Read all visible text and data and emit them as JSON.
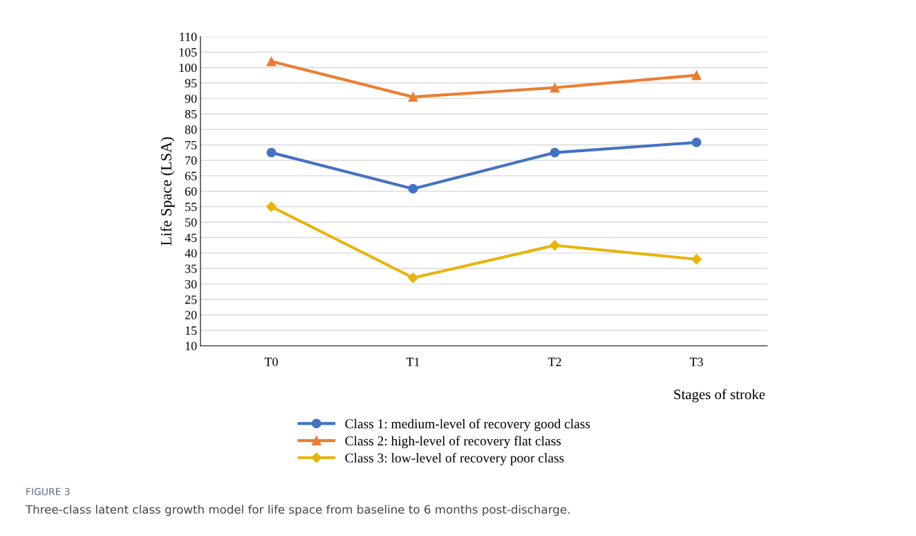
{
  "chart_data": {
    "type": "line",
    "xlabel": "Stages of stroke",
    "ylabel": "Life Space (LSA)",
    "categories": [
      "T0",
      "T1",
      "T2",
      "T3"
    ],
    "series": [
      {
        "name": "Class 1: medium-level of recovery good class",
        "color": "#4472c4",
        "marker": "circle",
        "values": [
          72.5,
          60.8,
          72.5,
          75.8
        ]
      },
      {
        "name": "Class 2: high-level of recovery flat class",
        "color": "#ed7d31",
        "marker": "triangle",
        "values": [
          102,
          90.5,
          93.5,
          97.5
        ]
      },
      {
        "name": "Class 3: low-level of recovery poor class",
        "color": "#e8b40c",
        "marker": "diamond",
        "values": [
          55,
          32,
          42.5,
          38
        ]
      }
    ],
    "ylim": [
      10,
      110
    ],
    "yticks": [
      10,
      15,
      20,
      25,
      30,
      35,
      40,
      45,
      50,
      55,
      60,
      65,
      70,
      75,
      80,
      85,
      90,
      95,
      100,
      105,
      110
    ],
    "grid": "y",
    "legend": "bottom",
    "line_style": "solid",
    "annotations": [
      "FIGURE 3",
      "Three-class latent class growth model for life space from baseline to 6 months post-discharge."
    ]
  }
}
